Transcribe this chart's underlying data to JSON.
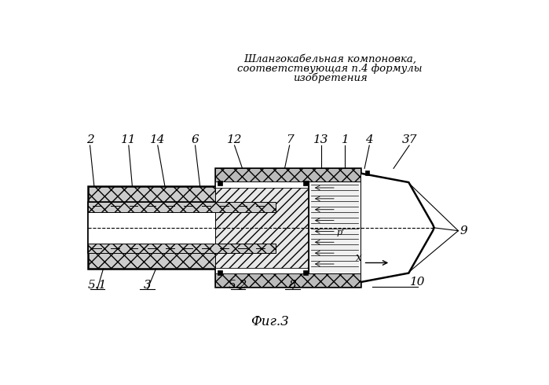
{
  "title_line1": "Шлангокабельная компоновка,",
  "title_line2": "соответствующая п.4 формулы",
  "title_line3": "изобретения",
  "fig_label": "Фиг.3",
  "bg_color": "#ffffff"
}
